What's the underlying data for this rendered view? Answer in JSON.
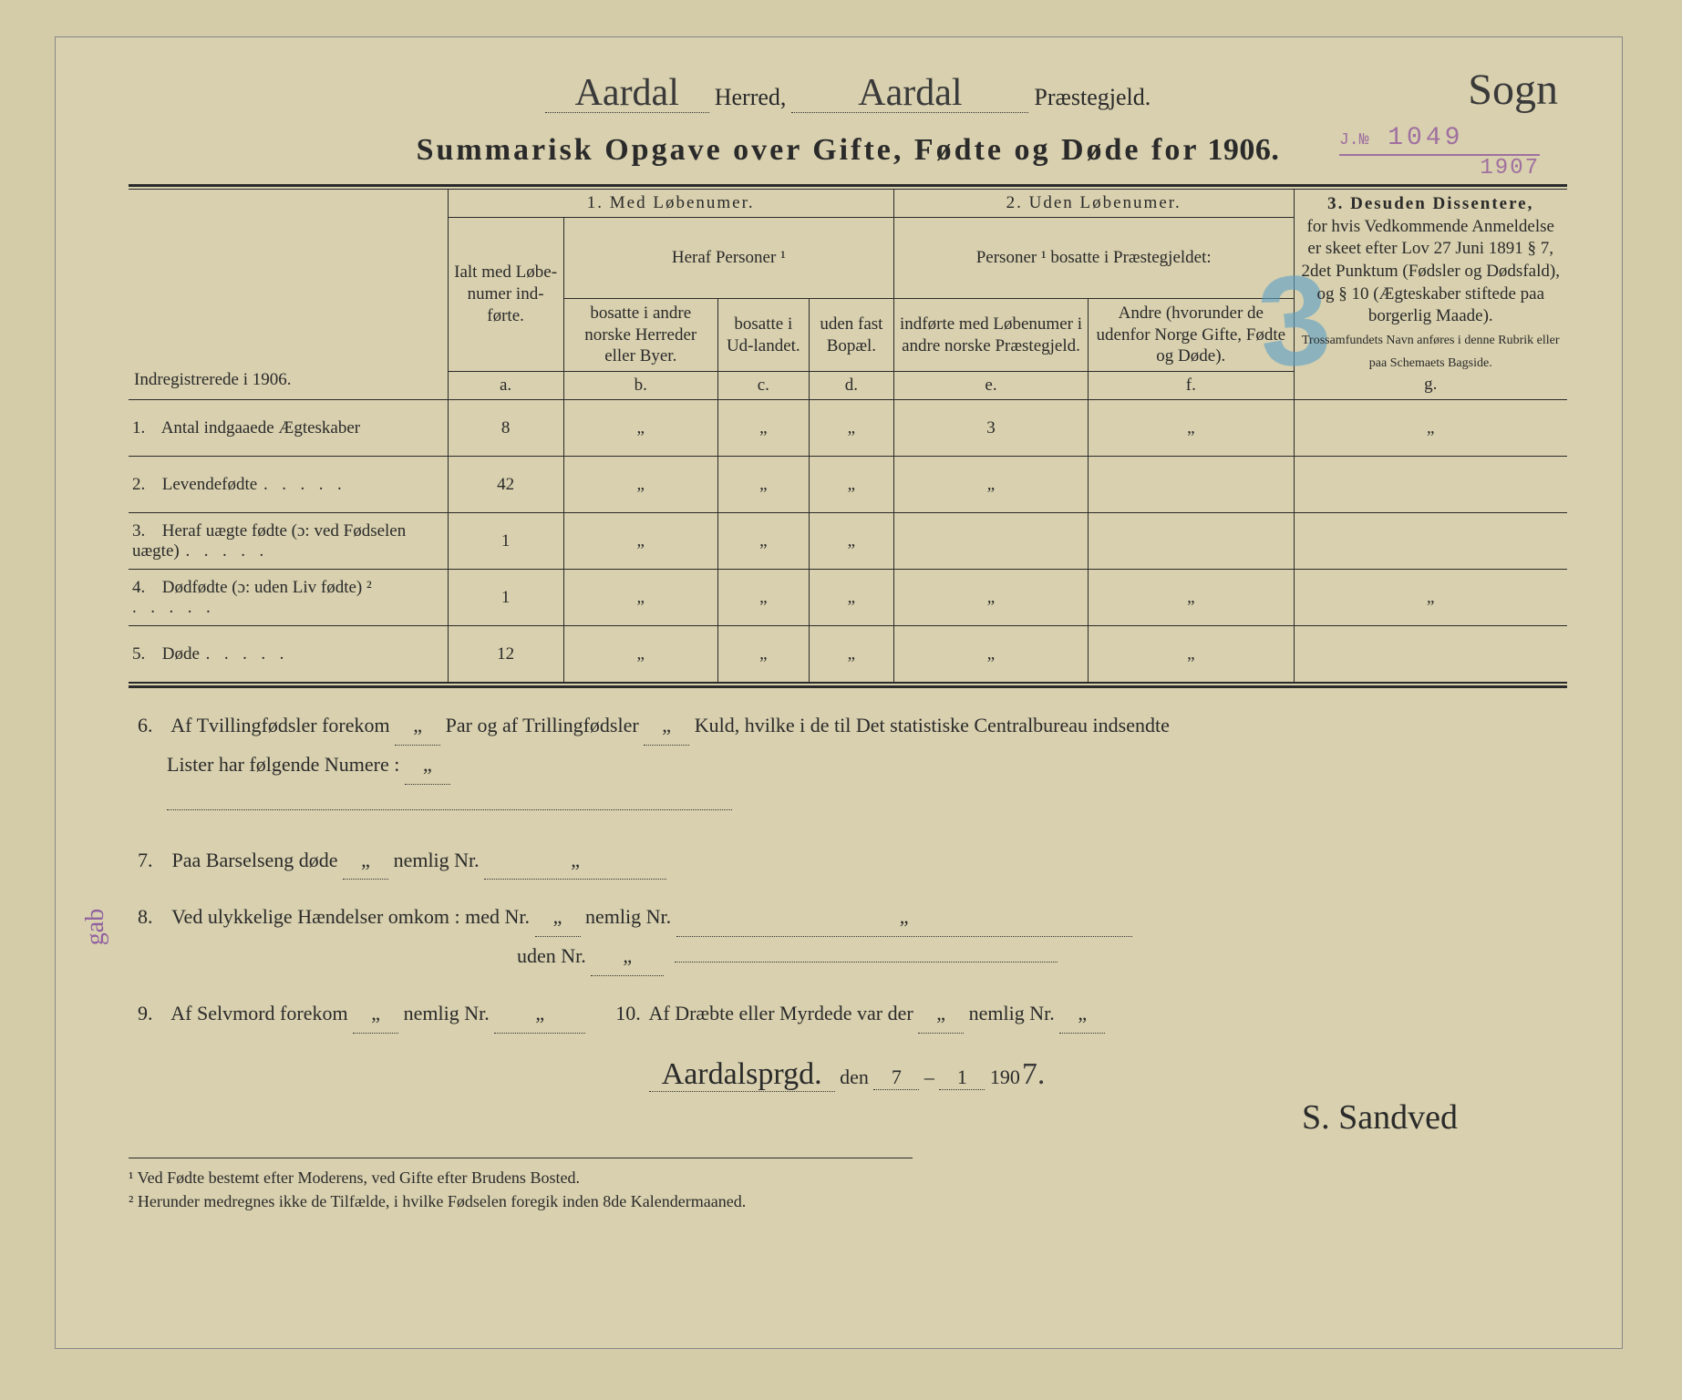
{
  "header": {
    "herred_value": "Aardal",
    "herred_label": "Herred,",
    "praestegjeld_value": "Aardal",
    "praestegjeld_label": "Præstegjeld.",
    "sogn_value": "Sogn"
  },
  "stamp": {
    "jnr_label": "J.№",
    "jnr_value": "1049",
    "year_value": "1907"
  },
  "blue_stamp": "3",
  "title_prefix": "Summarisk Opgave over Gifte, Fødte og Døde for",
  "title_year": "1906.",
  "table": {
    "indreg_label": "Indregistrerede i 1906.",
    "group1": "1.  Med Løbenumer.",
    "group2": "2. Uden Løbenumer.",
    "group3_title": "3.  Desuden Dissentere,",
    "group3_body": "for hvis Vedkommende Anmeldelse er skeet efter Lov 27 Juni 1891 § 7, 2det Punktum (Fødsler og Dødsfald), og § 10 (Ægteskaber stiftede paa borgerlig Maade).",
    "group3_small": "Trossamfundets Navn anføres i denne Rubrik eller paa Schemaets Bagside.",
    "ialt_label": "Ialt med Løbe-numer ind-førte.",
    "heraf_label": "Heraf Personer ¹",
    "pers_label": "Personer ¹ bosatte i Præstegjeldet:",
    "col_b": "bosatte i andre norske Herreder eller Byer.",
    "col_c": "bosatte i Ud-landet.",
    "col_d": "uden fast Bopæl.",
    "col_e": "indførte med Løbenumer i andre norske Præstegjeld.",
    "col_f": "Andre (hvorunder de udenfor Norge Gifte, Fødte og Døde).",
    "letters": {
      "a": "a.",
      "b": "b.",
      "c": "c.",
      "d": "d.",
      "e": "e.",
      "f": "f.",
      "g": "g."
    },
    "rows": [
      {
        "n": "1.",
        "label": "Antal indgaaede Ægteskaber",
        "a": "8",
        "b": "„",
        "c": "„",
        "d": "„",
        "e": "3",
        "f": "„",
        "g": "„"
      },
      {
        "n": "2.",
        "label": "Levendefødte",
        "dots": true,
        "a": "42",
        "b": "„",
        "c": "„",
        "d": "„",
        "e": "„",
        "f": "",
        "g": ""
      },
      {
        "n": "3.",
        "label": "Heraf uægte fødte (ɔ: ved Fødselen uægte)",
        "dots": true,
        "a": "1",
        "b": "„",
        "c": "„",
        "d": "„",
        "e": "",
        "f": "",
        "g": ""
      },
      {
        "n": "4.",
        "label": "Dødfødte (ɔ: uden Liv fødte) ²",
        "dots": true,
        "a": "1",
        "b": "„",
        "c": "„",
        "d": "„",
        "e": "„",
        "f": "„",
        "g": "„"
      },
      {
        "n": "5.",
        "label": "Døde",
        "dots": true,
        "a": "12",
        "b": "„",
        "c": "„",
        "d": "„",
        "e": "„",
        "f": "„",
        "g": ""
      }
    ]
  },
  "q6": {
    "pre": "Af Tvillingfødsler forekom",
    "val1": "„",
    "mid": "Par og af Trillingfødsler",
    "val2": "„",
    "post": "Kuld, hvilke i de til Det statistiske Centralbureau indsendte",
    "line2": "Lister har følgende Numere :",
    "val3": "„"
  },
  "q7": {
    "pre": "Paa Barselseng døde",
    "v1": "„",
    "mid": "nemlig Nr.",
    "v2": "„"
  },
  "q8": {
    "pre": "Ved ulykkelige Hændelser omkom :",
    "m1": "med Nr.",
    "v1": "„",
    "m2": "nemlig Nr.",
    "v2": "„",
    "u1": "uden Nr.",
    "v3": "„"
  },
  "q9": {
    "pre": "Af Selvmord forekom",
    "v1": "„",
    "mid": "nemlig Nr.",
    "v2": "„"
  },
  "q10": {
    "pre": "Af Dræbte eller Myrdede var der",
    "v1": "„",
    "mid": "nemlig Nr.",
    "v2": "„"
  },
  "signature": {
    "place": "Aardalsprgd.",
    "den": "den",
    "day": "7",
    "sep": "–",
    "month": "1",
    "year_prefix": "190",
    "year_suffix": "7.",
    "name": "S. Sandved"
  },
  "footnotes": {
    "f1": "¹ Ved Fødte bestemt efter Moderens, ved Gifte efter Brudens Bosted.",
    "f2": "² Herunder medregnes ikke de Tilfælde, i hvilke Fødselen foregik inden 8de Kalendermaaned."
  },
  "margin_note": "gab",
  "colors": {
    "paper": "#d8d0ae",
    "ink": "#2a2a2a",
    "stamp_purple": "#a070a0",
    "stamp_blue": "#5aa0c8",
    "handwriting": "#3a3a3a"
  }
}
